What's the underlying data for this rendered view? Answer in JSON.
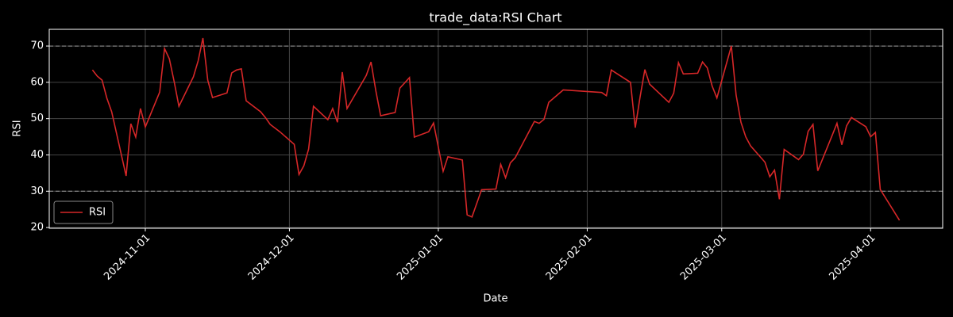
{
  "chart_data": {
    "type": "line",
    "title": "trade_data:RSI Chart",
    "x_label": "Date",
    "y_label": "RSI",
    "x": [
      "2024-10-21",
      "2024-10-22",
      "2024-10-23",
      "2024-10-24",
      "2024-10-25",
      "2024-10-28",
      "2024-10-29",
      "2024-10-30",
      "2024-10-31",
      "2024-11-01",
      "2024-11-04",
      "2024-11-05",
      "2024-11-06",
      "2024-11-07",
      "2024-11-08",
      "2024-11-11",
      "2024-11-12",
      "2024-11-13",
      "2024-11-14",
      "2024-11-15",
      "2024-11-18",
      "2024-11-19",
      "2024-11-20",
      "2024-11-21",
      "2024-11-22",
      "2024-11-25",
      "2024-11-26",
      "2024-11-27",
      "2024-11-29",
      "2024-12-02",
      "2024-12-03",
      "2024-12-04",
      "2024-12-05",
      "2024-12-06",
      "2024-12-09",
      "2024-12-10",
      "2024-12-11",
      "2024-12-12",
      "2024-12-13",
      "2024-12-17",
      "2024-12-18",
      "2024-12-19",
      "2024-12-20",
      "2024-12-23",
      "2024-12-24",
      "2024-12-26",
      "2024-12-27",
      "2024-12-30",
      "2024-12-31",
      "2025-01-02",
      "2025-01-03",
      "2025-01-06",
      "2025-01-07",
      "2025-01-08",
      "2025-01-10",
      "2025-01-13",
      "2025-01-14",
      "2025-01-15",
      "2025-01-16",
      "2025-01-17",
      "2025-01-21",
      "2025-01-22",
      "2025-01-23",
      "2025-01-24",
      "2025-01-27",
      "2025-02-04",
      "2025-02-05",
      "2025-02-06",
      "2025-02-10",
      "2025-02-11",
      "2025-02-12",
      "2025-02-13",
      "2025-02-14",
      "2025-02-18",
      "2025-02-19",
      "2025-02-20",
      "2025-02-21",
      "2025-02-24",
      "2025-02-25",
      "2025-02-26",
      "2025-02-27",
      "2025-02-28",
      "2025-03-03",
      "2025-03-04",
      "2025-03-05",
      "2025-03-06",
      "2025-03-07",
      "2025-03-10",
      "2025-03-11",
      "2025-03-12",
      "2025-03-13",
      "2025-03-14",
      "2025-03-17",
      "2025-03-18",
      "2025-03-19",
      "2025-03-20",
      "2025-03-21",
      "2025-03-24",
      "2025-03-25",
      "2025-03-26",
      "2025-03-27",
      "2025-03-28",
      "2025-03-31",
      "2025-04-01",
      "2025-04-02",
      "2025-04-03",
      "2025-04-07"
    ],
    "series": [
      {
        "name": "RSI",
        "color": "#d62728",
        "values": [
          63.4,
          61.7,
          60.6,
          55.6,
          51.9,
          34.2,
          48.6,
          44.9,
          52.8,
          47.7,
          57.3,
          69.3,
          66.5,
          60.2,
          53.4,
          61.5,
          65.9,
          72.2,
          60.6,
          55.8,
          57.1,
          62.6,
          63.4,
          63.7,
          54.9,
          51.9,
          50.3,
          48.4,
          46.4,
          42.9,
          34.6,
          37.0,
          41.6,
          53.4,
          49.7,
          52.8,
          49.0,
          62.8,
          52.8,
          61.9,
          65.6,
          57.6,
          50.8,
          51.7,
          58.4,
          61.3,
          44.9,
          46.4,
          48.8,
          35.5,
          39.5,
          38.6,
          23.5,
          22.9,
          30.4,
          30.6,
          37.4,
          33.7,
          37.8,
          39.2,
          49.2,
          48.7,
          49.8,
          54.5,
          57.9,
          57.2,
          56.3,
          63.4,
          60.0,
          47.5,
          56.0,
          63.5,
          59.5,
          54.5,
          57.0,
          65.4,
          62.3,
          62.5,
          65.6,
          64.0,
          59.0,
          55.7,
          70.0,
          56.5,
          49.0,
          45.0,
          42.5,
          38.0,
          34.0,
          35.8,
          27.8,
          41.5,
          38.7,
          40.2,
          46.5,
          48.4,
          35.6,
          45.4,
          48.7,
          42.8,
          48.0,
          50.3,
          47.8,
          45.0,
          46.2,
          30.5,
          22.0
        ]
      }
    ],
    "xlim": [
      "2024-10-12",
      "2025-04-16"
    ],
    "xticks": [
      "2024-11-01",
      "2024-12-01",
      "2025-01-01",
      "2025-02-01",
      "2025-03-01",
      "2025-04-01"
    ],
    "ylim": [
      19.8,
      74.6
    ],
    "yticks": [
      20,
      30,
      40,
      50,
      60,
      70
    ],
    "reference_lines": [
      70,
      30
    ],
    "grid": true,
    "legend": "lower left"
  }
}
